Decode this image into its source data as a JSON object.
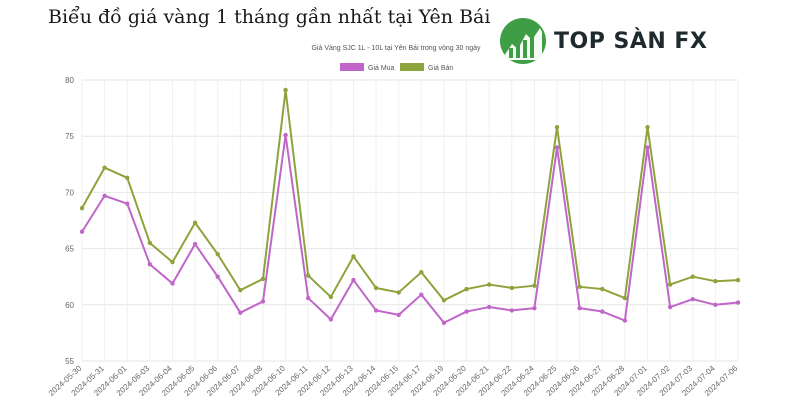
{
  "page": {
    "heading": "Biểu đồ giá vàng 1 tháng gần nhất tại Yên Bái",
    "logo_text": "TOP SÀN FX"
  },
  "chart_data": {
    "type": "line",
    "title": "Giá Vàng SJC 1L - 10L tại Yên Bái trong vòng 30 ngày",
    "xlabel": "",
    "ylabel": "",
    "ylim": [
      55,
      80
    ],
    "yticks": [
      55,
      60,
      65,
      70,
      75,
      80
    ],
    "grid": true,
    "legend_position": "top-center",
    "categories": [
      "2024-05-30",
      "2024-05-31",
      "2024-06-01",
      "2024-06-03",
      "2024-06-04",
      "2024-06-05",
      "2024-06-06",
      "2024-06-07",
      "2024-06-08",
      "2024-06-10",
      "2024-06-11",
      "2024-06-12",
      "2024-06-13",
      "2024-06-14",
      "2024-06-15",
      "2024-06-17",
      "2024-06-19",
      "2024-06-20",
      "2024-06-21",
      "2024-06-22",
      "2024-06-24",
      "2024-06-25",
      "2024-06-26",
      "2024-06-27",
      "2024-06-28",
      "2024-07-01",
      "2024-07-02",
      "2024-07-03",
      "2024-07-04",
      "2024-07-06"
    ],
    "series": [
      {
        "name": "Giá Mua",
        "color": "#c066c9",
        "values": [
          66.5,
          69.7,
          69.0,
          63.6,
          61.9,
          65.4,
          62.5,
          59.3,
          60.3,
          75.1,
          60.6,
          58.7,
          62.2,
          59.5,
          59.1,
          60.9,
          58.4,
          59.4,
          59.8,
          59.5,
          59.7,
          74.0,
          59.7,
          59.4,
          58.6,
          74.0,
          59.8,
          60.5,
          60.0,
          60.2
        ]
      },
      {
        "name": "Giá Bán",
        "color": "#8da33b",
        "values": [
          68.6,
          72.2,
          71.3,
          65.5,
          63.8,
          67.3,
          64.5,
          61.3,
          62.3,
          79.1,
          62.6,
          60.7,
          64.3,
          61.5,
          61.1,
          62.9,
          60.4,
          61.4,
          61.8,
          61.5,
          61.7,
          75.8,
          61.6,
          61.4,
          60.6,
          75.8,
          61.8,
          62.5,
          62.1,
          62.2
        ]
      }
    ]
  }
}
